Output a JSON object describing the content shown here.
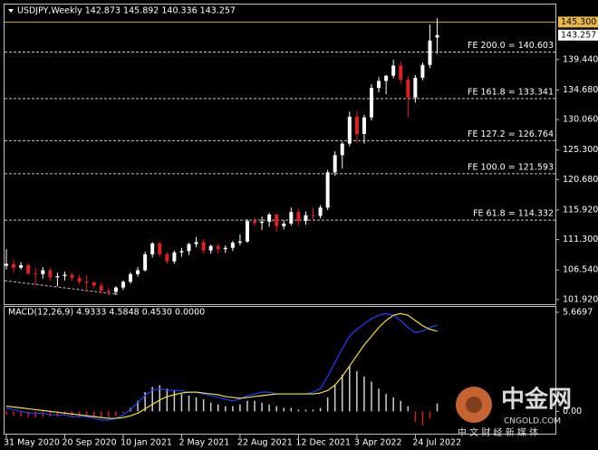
{
  "chart_data": [
    {
      "type": "candlestick",
      "title": "USDJPY,Weekly  142.873 145.892 140.336 143.257",
      "categories": [
        "31 May 2020",
        null,
        null,
        null,
        null,
        null,
        null,
        null,
        "20 Sep 2020",
        null,
        null,
        null,
        null,
        null,
        null,
        null,
        "10 Jan 2021",
        null,
        null,
        null,
        null,
        null,
        null,
        null,
        "2 May 2021",
        null,
        null,
        null,
        null,
        null,
        null,
        null,
        "22 Aug 2021",
        null,
        null,
        null,
        null,
        null,
        null,
        null,
        "12 Dec 2021",
        null,
        null,
        null,
        null,
        null,
        null,
        null,
        "3 Apr 2022",
        null,
        null,
        null,
        null,
        null,
        null,
        null,
        "24 Jul 2022",
        null,
        null,
        null
      ],
      "open": [
        107.2,
        107.5,
        106.9,
        107.3,
        106.0,
        105.9,
        106.5,
        105.4,
        105.6,
        105.8,
        105.3,
        104.7,
        104.6,
        104.1,
        103.3,
        103.1,
        103.8,
        104.7,
        105.9,
        106.5,
        109.0,
        110.7,
        109.0,
        107.9,
        109.3,
        109.5,
        110.6,
        110.9,
        109.6,
        110.3,
        109.8,
        110.0,
        110.8,
        111.0,
        114.2,
        113.9,
        114.1,
        115.2,
        113.4,
        113.8,
        115.6,
        114.2,
        115.1,
        115.0,
        116.3,
        121.8,
        124.5,
        126.3,
        130.5,
        127.8,
        130.4,
        135.0,
        136.1,
        136.9,
        138.5,
        136.3,
        133.5,
        136.6,
        138.6,
        142.873
      ],
      "high": [
        109.8,
        108.2,
        107.8,
        107.6,
        106.9,
        107.0,
        106.9,
        106.1,
        106.3,
        106.1,
        105.8,
        105.7,
        104.8,
        104.6,
        103.7,
        104.0,
        104.9,
        106.2,
        107.0,
        109.4,
        110.9,
        110.9,
        109.4,
        109.6,
        110.0,
        110.8,
        111.7,
        111.4,
        110.5,
        110.6,
        110.4,
        111.1,
        112.1,
        114.5,
        114.7,
        114.9,
        115.5,
        115.4,
        114.3,
        116.3,
        116.1,
        115.7,
        116.3,
        116.7,
        122.2,
        125.1,
        126.6,
        131.3,
        131.4,
        130.8,
        135.6,
        136.7,
        137.0,
        139.4,
        139.1,
        136.8,
        137.0,
        139.0,
        144.9,
        145.892
      ],
      "low": [
        106.6,
        106.1,
        106.6,
        105.8,
        104.2,
        105.2,
        104.8,
        104.0,
        104.9,
        104.8,
        104.3,
        103.2,
        103.7,
        102.9,
        102.6,
        102.6,
        103.4,
        104.4,
        105.5,
        106.3,
        108.5,
        108.6,
        107.5,
        107.5,
        108.6,
        108.9,
        110.1,
        109.1,
        109.1,
        109.1,
        109.2,
        109.5,
        110.4,
        110.8,
        113.4,
        112.8,
        113.3,
        112.5,
        112.9,
        113.5,
        113.5,
        113.6,
        114.3,
        114.6,
        115.9,
        121.3,
        122.4,
        125.9,
        126.4,
        126.3,
        129.9,
        134.3,
        134.0,
        136.5,
        135.6,
        130.4,
        132.7,
        136.2,
        138.1,
        140.336
      ],
      "close": [
        107.5,
        106.9,
        107.3,
        106.0,
        105.9,
        106.5,
        105.4,
        105.6,
        105.8,
        105.3,
        104.7,
        104.6,
        104.1,
        103.3,
        103.1,
        103.8,
        104.7,
        105.9,
        106.5,
        109.0,
        110.7,
        109.0,
        107.9,
        109.3,
        109.5,
        110.6,
        110.9,
        109.6,
        110.3,
        109.8,
        110.0,
        110.8,
        111.0,
        114.2,
        113.9,
        114.1,
        115.2,
        113.4,
        113.8,
        115.6,
        114.2,
        115.1,
        115.0,
        116.3,
        121.8,
        124.5,
        126.3,
        130.5,
        127.8,
        130.4,
        135.0,
        136.1,
        136.9,
        138.5,
        136.3,
        133.5,
        136.6,
        138.6,
        142.4,
        143.257
      ],
      "up_color": "#ffffff",
      "down_color": "#e02020",
      "ylim": [
        101.05,
        148.04
      ],
      "yticks": [
        {
          "value": 139.44,
          "label": "139.440"
        },
        {
          "value": 134.68,
          "label": "134.680"
        },
        {
          "value": 130.06,
          "label": "130.060"
        },
        {
          "value": 125.3,
          "label": "125.300"
        },
        {
          "value": 120.68,
          "label": "120.680"
        },
        {
          "value": 115.92,
          "label": "115.920"
        },
        {
          "value": 111.3,
          "label": "111.300"
        },
        {
          "value": 106.54,
          "label": "106.540"
        },
        {
          "value": 101.92,
          "label": "101.920"
        }
      ],
      "high_line": {
        "value": 145.3,
        "label": "145.300"
      },
      "last_price": {
        "value": 143.257,
        "label": "143.257"
      },
      "levels": [
        {
          "value": 140.603,
          "label": "FE 200.0 = 140.603"
        },
        {
          "value": 133.341,
          "label": "FE 161.8 = 133.341"
        },
        {
          "value": 126.764,
          "label": "FE 127.2 = 126.764"
        },
        {
          "value": 121.593,
          "label": "FE 100.0 = 121.593"
        },
        {
          "value": 114.332,
          "label": "FE 61.8 = 114.332"
        }
      ]
    },
    {
      "type": "macd",
      "title": "MACD(12,26,9) 4.9333 4.5848 0.4530 0.0000",
      "histogram": [
        -0.2,
        -0.25,
        -0.3,
        -0.35,
        -0.35,
        -0.3,
        -0.3,
        -0.3,
        -0.25,
        -0.3,
        -0.35,
        -0.3,
        -0.35,
        -0.4,
        -0.4,
        -0.3,
        -0.1,
        0.2,
        0.6,
        1.1,
        1.4,
        1.5,
        1.3,
        1.2,
        1.0,
        0.9,
        0.8,
        0.7,
        0.5,
        0.4,
        0.3,
        0.3,
        0.4,
        0.6,
        0.6,
        0.5,
        0.4,
        0.3,
        0.2,
        0.2,
        0.1,
        0.1,
        0.1,
        0.2,
        0.8,
        1.5,
        2.1,
        2.6,
        2.3,
        2.0,
        1.7,
        1.3,
        1.0,
        0.8,
        0.6,
        0.3,
        -0.6,
        -0.8,
        -0.4,
        0.453
      ],
      "main": [
        0.2,
        0.1,
        0.0,
        -0.1,
        -0.1,
        -0.1,
        -0.2,
        -0.2,
        -0.2,
        -0.3,
        -0.3,
        -0.3,
        -0.4,
        -0.5,
        -0.5,
        -0.4,
        -0.2,
        0.1,
        0.5,
        0.9,
        1.2,
        1.3,
        1.2,
        1.2,
        1.2,
        1.1,
        1.1,
        1.0,
        0.9,
        0.8,
        0.7,
        0.6,
        0.7,
        0.9,
        1.0,
        1.1,
        1.1,
        1.0,
        1.0,
        1.0,
        1.0,
        1.0,
        1.1,
        1.3,
        2.0,
        2.8,
        3.6,
        4.3,
        4.7,
        5.0,
        5.3,
        5.5,
        5.6,
        5.5,
        5.2,
        4.8,
        4.5,
        4.6,
        4.8,
        4.9333
      ],
      "signal": [
        0.3,
        0.25,
        0.2,
        0.15,
        0.1,
        0.05,
        0,
        -0.05,
        -0.1,
        -0.15,
        -0.2,
        -0.25,
        -0.3,
        -0.35,
        -0.4,
        -0.4,
        -0.35,
        -0.25,
        -0.1,
        0.15,
        0.4,
        0.65,
        0.85,
        0.95,
        1.05,
        1.1,
        1.1,
        1.05,
        1.0,
        0.95,
        0.85,
        0.8,
        0.75,
        0.8,
        0.85,
        0.9,
        0.95,
        1.0,
        1.0,
        1.0,
        1.0,
        1.0,
        1.0,
        1.05,
        1.2,
        1.5,
        2.0,
        2.6,
        3.2,
        3.8,
        4.3,
        4.8,
        5.2,
        5.5,
        5.6,
        5.5,
        5.2,
        4.9,
        4.7,
        4.5848
      ],
      "histogram_color": "#d0d0d0",
      "negative_color": "#d02020",
      "main_color": "#1f3fff",
      "signal_color": "#f0e040",
      "ylim": [
        -1.277,
        5.976
      ],
      "yticks": [
        5.6697,
        {
          "value": 0,
          "label": "0.00"
        }
      ]
    }
  ],
  "watermark": {
    "name": "中金网",
    "domain": "CNGOLD.COM",
    "tagline": "中 文 财 经 新 媒 体"
  }
}
